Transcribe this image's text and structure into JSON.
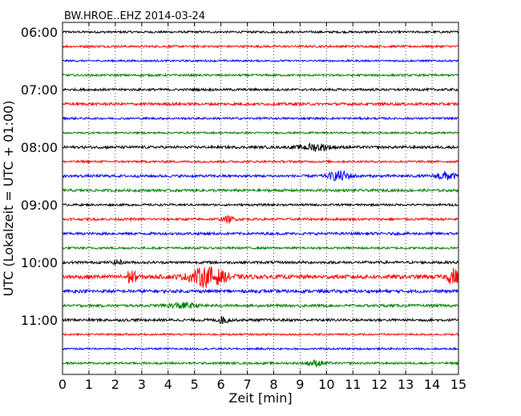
{
  "chart_data": {
    "type": "line",
    "title": "BW.HROE..EHZ 2014-03-24",
    "xlabel": "Zeit  [min]",
    "ylabel": "UTC (Lokalzeit = UTC + 01:00)",
    "xlim": [
      0,
      15
    ],
    "x_ticks": [
      "0",
      "1",
      "2",
      "3",
      "4",
      "5",
      "6",
      "7",
      "8",
      "9",
      "10",
      "11",
      "12",
      "13",
      "14",
      "15"
    ],
    "y_tick_labels": [
      "06:00",
      "07:00",
      "08:00",
      "09:00",
      "10:00",
      "11:00"
    ],
    "grid": "vertical-dotted",
    "line_interval_minutes": 15,
    "series": [
      {
        "start": "06:00",
        "color": "#000000",
        "amplitude": 0.08
      },
      {
        "start": "06:15",
        "color": "#ff0000",
        "amplitude": 0.08
      },
      {
        "start": "06:30",
        "color": "#0000ff",
        "amplitude": 0.07
      },
      {
        "start": "06:45",
        "color": "#008000",
        "amplitude": 0.08
      },
      {
        "start": "07:00",
        "color": "#000000",
        "amplitude": 0.09
      },
      {
        "start": "07:15",
        "color": "#ff0000",
        "amplitude": 0.1
      },
      {
        "start": "07:30",
        "color": "#0000ff",
        "amplitude": 0.08
      },
      {
        "start": "07:45",
        "color": "#008000",
        "amplitude": 0.07
      },
      {
        "start": "08:00",
        "color": "#000000",
        "amplitude": 0.1,
        "bursts": [
          {
            "t": 9.6,
            "w": 0.8,
            "a": 0.25
          }
        ]
      },
      {
        "start": "08:15",
        "color": "#ff0000",
        "amplitude": 0.08
      },
      {
        "start": "08:30",
        "color": "#0000ff",
        "amplitude": 0.1,
        "bursts": [
          {
            "t": 10.5,
            "w": 0.6,
            "a": 0.35
          },
          {
            "t": 14.5,
            "w": 0.5,
            "a": 0.3
          }
        ]
      },
      {
        "start": "08:45",
        "color": "#008000",
        "amplitude": 0.1
      },
      {
        "start": "09:00",
        "color": "#000000",
        "amplitude": 0.08
      },
      {
        "start": "09:15",
        "color": "#ff0000",
        "amplitude": 0.09,
        "bursts": [
          {
            "t": 6.3,
            "w": 0.3,
            "a": 0.2
          }
        ]
      },
      {
        "start": "09:30",
        "color": "#0000ff",
        "amplitude": 0.1
      },
      {
        "start": "09:45",
        "color": "#008000",
        "amplitude": 0.08
      },
      {
        "start": "10:00",
        "color": "#000000",
        "amplitude": 0.1,
        "bursts": [
          {
            "t": 2.1,
            "w": 0.2,
            "a": 0.2
          }
        ]
      },
      {
        "start": "10:15",
        "color": "#ff0000",
        "amplitude": 0.15,
        "bursts": [
          {
            "t": 2.6,
            "w": 0.3,
            "a": 0.5
          },
          {
            "t": 5.5,
            "w": 1.0,
            "a": 0.7
          },
          {
            "t": 14.8,
            "w": 0.3,
            "a": 0.6
          }
        ]
      },
      {
        "start": "10:30",
        "color": "#0000ff",
        "amplitude": 0.12
      },
      {
        "start": "10:45",
        "color": "#008000",
        "amplitude": 0.1,
        "bursts": [
          {
            "t": 4.5,
            "w": 0.8,
            "a": 0.2
          }
        ]
      },
      {
        "start": "11:00",
        "color": "#000000",
        "amplitude": 0.1,
        "bursts": [
          {
            "t": 6.1,
            "w": 0.3,
            "a": 0.25
          }
        ]
      },
      {
        "start": "11:15",
        "color": "#ff0000",
        "amplitude": 0.07
      },
      {
        "start": "11:30",
        "color": "#0000ff",
        "amplitude": 0.07
      },
      {
        "start": "11:45",
        "color": "#008000",
        "amplitude": 0.08,
        "bursts": [
          {
            "t": 9.6,
            "w": 0.5,
            "a": 0.2
          }
        ]
      }
    ]
  }
}
